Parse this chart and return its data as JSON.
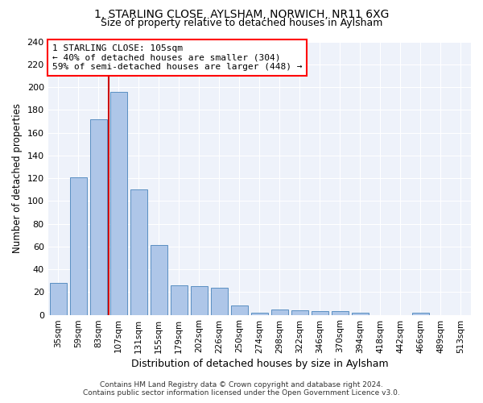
{
  "title1": "1, STARLING CLOSE, AYLSHAM, NORWICH, NR11 6XG",
  "title2": "Size of property relative to detached houses in Aylsham",
  "xlabel": "Distribution of detached houses by size in Aylsham",
  "ylabel": "Number of detached properties",
  "bar_labels": [
    "35sqm",
    "59sqm",
    "83sqm",
    "107sqm",
    "131sqm",
    "155sqm",
    "179sqm",
    "202sqm",
    "226sqm",
    "250sqm",
    "274sqm",
    "298sqm",
    "322sqm",
    "346sqm",
    "370sqm",
    "394sqm",
    "418sqm",
    "442sqm",
    "466sqm",
    "489sqm",
    "513sqm"
  ],
  "bar_values": [
    28,
    121,
    172,
    196,
    110,
    61,
    26,
    25,
    24,
    8,
    2,
    5,
    4,
    3,
    3,
    2,
    0,
    0,
    2,
    0,
    0
  ],
  "bar_color": "#aec6e8",
  "bar_edge_color": "#5a8fc2",
  "highlight_bar_index": 3,
  "highlight_color": "#cc0000",
  "annotation_title": "1 STARLING CLOSE: 105sqm",
  "annotation_line1": "← 40% of detached houses are smaller (304)",
  "annotation_line2": "59% of semi-detached houses are larger (448) →",
  "ylim": [
    0,
    240
  ],
  "yticks": [
    0,
    20,
    40,
    60,
    80,
    100,
    120,
    140,
    160,
    180,
    200,
    220,
    240
  ],
  "background_color": "#eef2fa",
  "footer1": "Contains HM Land Registry data © Crown copyright and database right 2024.",
  "footer2": "Contains public sector information licensed under the Open Government Licence v3.0.",
  "fig_width": 6.0,
  "fig_height": 5.0,
  "dpi": 100
}
